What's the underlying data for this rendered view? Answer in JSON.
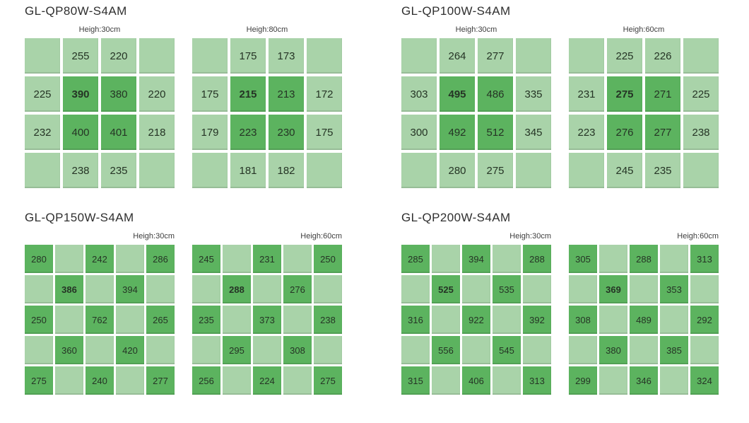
{
  "colors": {
    "background": "#ffffff",
    "cell_light": "#a9d3a9",
    "cell_dark": "#5cb35f",
    "cell_text": "#253425",
    "title_text": "#2f2f2f",
    "label_text": "#3d3d3d"
  },
  "chart_data": [
    {
      "type": "heatmap",
      "title": "GL-QP80W-S4AM",
      "grids": [
        {
          "label": "Heigh:30cm",
          "rows": 4,
          "cols": 4,
          "values": [
            [
              "",
              "255",
              "220",
              ""
            ],
            [
              "225",
              "390",
              "380",
              "220"
            ],
            [
              "232",
              "400",
              "401",
              "218"
            ],
            [
              "",
              "238",
              "235",
              ""
            ]
          ],
          "dark_cells": [
            [
              1,
              1
            ],
            [
              1,
              2
            ],
            [
              2,
              1
            ],
            [
              2,
              2
            ]
          ],
          "bold_cell": [
            1,
            1
          ]
        },
        {
          "label": "Heigh:80cm",
          "rows": 4,
          "cols": 4,
          "values": [
            [
              "",
              "175",
              "173",
              ""
            ],
            [
              "175",
              "215",
              "213",
              "172"
            ],
            [
              "179",
              "223",
              "230",
              "175"
            ],
            [
              "",
              "181",
              "182",
              ""
            ]
          ],
          "dark_cells": [
            [
              1,
              1
            ],
            [
              1,
              2
            ],
            [
              2,
              1
            ],
            [
              2,
              2
            ]
          ],
          "bold_cell": [
            1,
            1
          ]
        }
      ]
    },
    {
      "type": "heatmap",
      "title": "GL-QP100W-S4AM",
      "grids": [
        {
          "label": "Heigh:30cm",
          "rows": 4,
          "cols": 4,
          "values": [
            [
              "",
              "264",
              "277",
              ""
            ],
            [
              "303",
              "495",
              "486",
              "335"
            ],
            [
              "300",
              "492",
              "512",
              "345"
            ],
            [
              "",
              "280",
              "275",
              ""
            ]
          ],
          "dark_cells": [
            [
              1,
              1
            ],
            [
              1,
              2
            ],
            [
              2,
              1
            ],
            [
              2,
              2
            ]
          ],
          "bold_cell": [
            1,
            1
          ]
        },
        {
          "label": "Heigh:60cm",
          "rows": 4,
          "cols": 4,
          "values": [
            [
              "",
              "225",
              "226",
              ""
            ],
            [
              "231",
              "275",
              "271",
              "225"
            ],
            [
              "223",
              "276",
              "277",
              "238"
            ],
            [
              "",
              "245",
              "235",
              ""
            ]
          ],
          "dark_cells": [
            [
              1,
              1
            ],
            [
              1,
              2
            ],
            [
              2,
              1
            ],
            [
              2,
              2
            ]
          ],
          "bold_cell": [
            1,
            1
          ]
        }
      ]
    },
    {
      "type": "heatmap",
      "title": "GL-QP150W-S4AM",
      "grids": [
        {
          "label": "Heigh:30cm",
          "rows": 5,
          "cols": 5,
          "values": [
            [
              "280",
              "",
              "242",
              "",
              "286"
            ],
            [
              "",
              "386",
              "",
              "394",
              ""
            ],
            [
              "250",
              "",
              "762",
              "",
              "265"
            ],
            [
              "",
              "360",
              "",
              "420",
              ""
            ],
            [
              "275",
              "",
              "240",
              "",
              "277"
            ]
          ],
          "dark_cells": [
            [
              0,
              0
            ],
            [
              0,
              2
            ],
            [
              0,
              4
            ],
            [
              1,
              1
            ],
            [
              1,
              3
            ],
            [
              2,
              0
            ],
            [
              2,
              2
            ],
            [
              2,
              4
            ],
            [
              3,
              1
            ],
            [
              3,
              3
            ],
            [
              4,
              0
            ],
            [
              4,
              2
            ],
            [
              4,
              4
            ]
          ],
          "bold_cell": [
            1,
            1
          ]
        },
        {
          "label": "Heigh:60cm",
          "rows": 5,
          "cols": 5,
          "values": [
            [
              "245",
              "",
              "231",
              "",
              "250"
            ],
            [
              "",
              "288",
              "",
              "276",
              ""
            ],
            [
              "235",
              "",
              "373",
              "",
              "238"
            ],
            [
              "",
              "295",
              "",
              "308",
              ""
            ],
            [
              "256",
              "",
              "224",
              "",
              "275"
            ]
          ],
          "dark_cells": [
            [
              0,
              0
            ],
            [
              0,
              2
            ],
            [
              0,
              4
            ],
            [
              1,
              1
            ],
            [
              1,
              3
            ],
            [
              2,
              0
            ],
            [
              2,
              2
            ],
            [
              2,
              4
            ],
            [
              3,
              1
            ],
            [
              3,
              3
            ],
            [
              4,
              0
            ],
            [
              4,
              2
            ],
            [
              4,
              4
            ]
          ],
          "bold_cell": [
            1,
            1
          ]
        }
      ]
    },
    {
      "type": "heatmap",
      "title": "GL-QP200W-S4AM",
      "grids": [
        {
          "label": "Heigh:30cm",
          "rows": 5,
          "cols": 5,
          "values": [
            [
              "285",
              "",
              "394",
              "",
              "288"
            ],
            [
              "",
              "525",
              "",
              "535",
              ""
            ],
            [
              "316",
              "",
              "922",
              "",
              "392"
            ],
            [
              "",
              "556",
              "",
              "545",
              ""
            ],
            [
              "315",
              "",
              "406",
              "",
              "313"
            ]
          ],
          "dark_cells": [
            [
              0,
              0
            ],
            [
              0,
              2
            ],
            [
              0,
              4
            ],
            [
              1,
              1
            ],
            [
              1,
              3
            ],
            [
              2,
              0
            ],
            [
              2,
              2
            ],
            [
              2,
              4
            ],
            [
              3,
              1
            ],
            [
              3,
              3
            ],
            [
              4,
              0
            ],
            [
              4,
              2
            ],
            [
              4,
              4
            ]
          ],
          "bold_cell": [
            1,
            1
          ]
        },
        {
          "label": "Heigh:60cm",
          "rows": 5,
          "cols": 5,
          "values": [
            [
              "305",
              "",
              "288",
              "",
              "313"
            ],
            [
              "",
              "369",
              "",
              "353",
              ""
            ],
            [
              "308",
              "",
              "489",
              "",
              "292"
            ],
            [
              "",
              "380",
              "",
              "385",
              ""
            ],
            [
              "299",
              "",
              "346",
              "",
              "324"
            ]
          ],
          "dark_cells": [
            [
              0,
              0
            ],
            [
              0,
              2
            ],
            [
              0,
              4
            ],
            [
              1,
              1
            ],
            [
              1,
              3
            ],
            [
              2,
              0
            ],
            [
              2,
              2
            ],
            [
              2,
              4
            ],
            [
              3,
              1
            ],
            [
              3,
              3
            ],
            [
              4,
              0
            ],
            [
              4,
              2
            ],
            [
              4,
              4
            ]
          ],
          "bold_cell": [
            1,
            1
          ]
        }
      ]
    }
  ]
}
